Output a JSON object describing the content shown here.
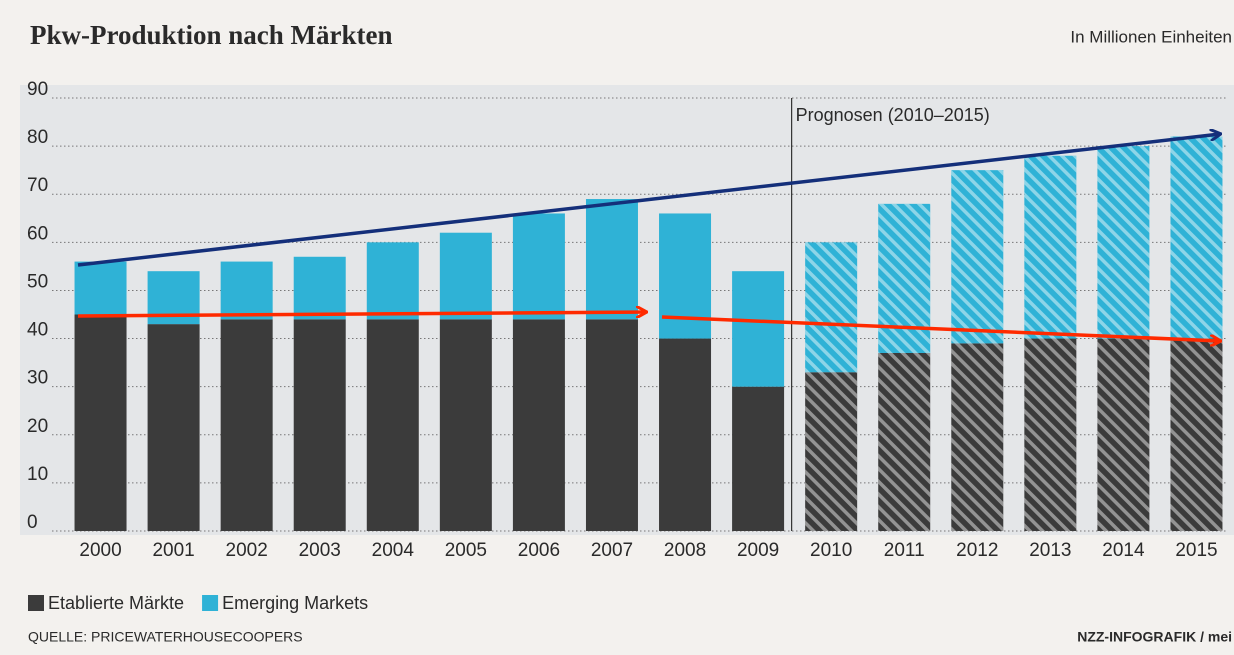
{
  "chart_data": {
    "type": "stacked_bar",
    "title": "Pkw-Produktion nach Märkten",
    "unit": "In Millionen Einheiten",
    "annotation": "Prognosen (2010–2015)",
    "source": "QUELLE: PRICEWATERHOUSECOOPERS",
    "credit": "NZZ-INFOGRAFIK / mei",
    "categories": [
      "2000",
      "2001",
      "2002",
      "2003",
      "2004",
      "2005",
      "2006",
      "2007",
      "2008",
      "2009",
      "2010",
      "2011",
      "2012",
      "2013",
      "2014",
      "2015"
    ],
    "forecast": [
      false,
      false,
      false,
      false,
      false,
      false,
      false,
      false,
      false,
      false,
      true,
      true,
      true,
      true,
      true,
      true
    ],
    "series": [
      {
        "name": "Etablierte Märkte",
        "color": "#3b3b3b",
        "values": [
          45,
          43,
          44,
          44,
          44,
          44,
          44,
          44,
          40,
          30,
          33,
          37,
          39,
          40,
          40,
          40
        ]
      },
      {
        "name": "Emerging Markets",
        "color": "#2fb2d6",
        "values": [
          11,
          11,
          12,
          13,
          16,
          18,
          22,
          25,
          26,
          24,
          27,
          31,
          36,
          38,
          40,
          42
        ]
      }
    ],
    "ylim": [
      0,
      90
    ],
    "yticks": [
      0,
      10,
      20,
      30,
      40,
      50,
      60,
      70,
      80,
      90
    ],
    "grid": true,
    "legend": "bottom-left"
  }
}
